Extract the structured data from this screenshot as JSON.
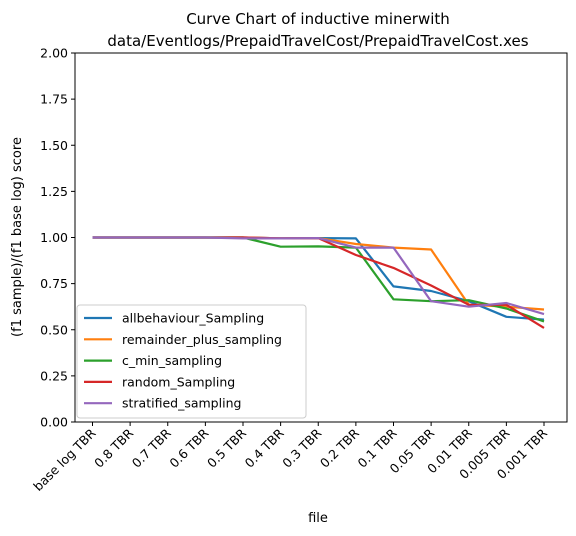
{
  "chart_data": {
    "type": "line",
    "title_line1": "Curve Chart of inductive minerwith",
    "title_line2": "data/Eventlogs/PrepaidTravelCost/PrepaidTravelCost.xes",
    "xlabel": "file",
    "ylabel": "(f1 sample)/(f1 base log) score",
    "categories": [
      "base log TBR",
      "0.8 TBR",
      "0.7 TBR",
      "0.6 TBR",
      "0.5 TBR",
      "0.4 TBR",
      "0.3 TBR",
      "0.2 TBR",
      "0.1 TBR",
      "0.05 TBR",
      "0.01 TBR",
      "0.005 TBR",
      "0.001 TBR"
    ],
    "ylim": [
      0,
      2
    ],
    "yticks": [
      "0.00",
      "0.25",
      "0.50",
      "0.75",
      "1.00",
      "1.25",
      "1.50",
      "1.75",
      "2.00"
    ],
    "legend_position": "lower-left",
    "series": [
      {
        "name": "allbehaviour_Sampling",
        "color": "#1f77b4",
        "values": [
          1.0,
          1.0,
          1.0,
          1.0,
          1.0,
          0.995,
          0.997,
          0.995,
          0.735,
          0.71,
          0.655,
          0.57,
          0.555
        ]
      },
      {
        "name": "remainder_plus_sampling",
        "color": "#ff7f0e",
        "values": [
          1.0,
          1.0,
          1.0,
          1.0,
          1.0,
          0.995,
          0.997,
          0.965,
          0.945,
          0.935,
          0.635,
          0.625,
          0.61
        ]
      },
      {
        "name": "c_min_sampling",
        "color": "#2ca02c",
        "values": [
          1.0,
          1.0,
          1.0,
          1.0,
          1.0,
          0.95,
          0.952,
          0.945,
          0.665,
          0.655,
          0.66,
          0.615,
          0.545
        ]
      },
      {
        "name": "random_Sampling",
        "color": "#d62728",
        "values": [
          1.0,
          1.0,
          1.0,
          1.0,
          1.0,
          0.995,
          0.997,
          0.905,
          0.835,
          0.74,
          0.635,
          0.635,
          0.51
        ]
      },
      {
        "name": "stratified_sampling",
        "color": "#9467bd",
        "values": [
          1.0,
          1.0,
          1.0,
          1.0,
          0.995,
          0.995,
          0.997,
          0.945,
          0.945,
          0.655,
          0.625,
          0.645,
          0.585
        ]
      }
    ]
  }
}
